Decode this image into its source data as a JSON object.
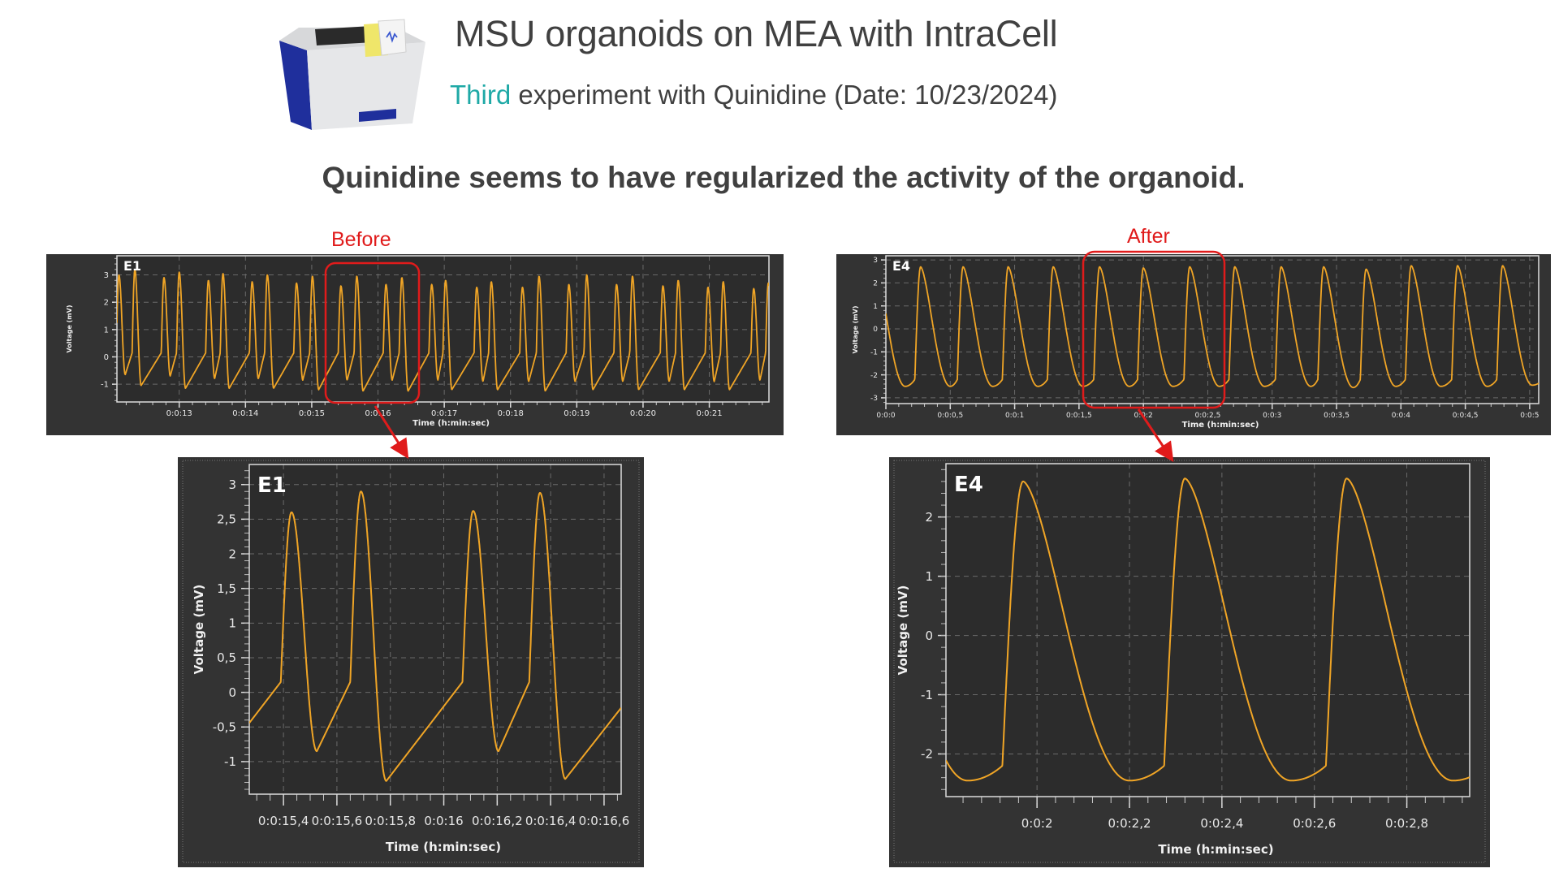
{
  "header": {
    "title": "MSU organoids on MEA with IntraCell",
    "subtitle_accent": "Third",
    "subtitle_rest": " experiment with Quinidine (Date: 10/23/2024)",
    "headline": "Quinidine seems to have regularized the activity of the organoid.",
    "device_icon": "mea-device-icon"
  },
  "annotations": {
    "before_label": "Before",
    "after_label": "After",
    "highlight_color": "#e01b1b"
  },
  "colors": {
    "trace": "#f0a526",
    "panel_bg": "#333333",
    "plot_bg": "#2c2c2c",
    "accent": "#1fa9a6"
  },
  "chart_data": [
    {
      "type": "line",
      "title": "E1",
      "xlabel": "Time (h:min:sec)",
      "ylabel": "Voltage (mV)",
      "xlim": [
        12.06,
        21.9
      ],
      "ylim": [
        -1.65,
        3.7
      ],
      "grid": true,
      "xticks": [
        [
          13,
          "0:0:13"
        ],
        [
          14,
          "0:0:14"
        ],
        [
          15,
          "0:0:15"
        ],
        [
          16,
          "0:0:16"
        ],
        [
          17,
          "0:0:17"
        ],
        [
          18,
          "0:0:18"
        ],
        [
          19,
          "0:0:19"
        ],
        [
          20,
          "0:0:20"
        ],
        [
          21,
          "0:0:21"
        ]
      ],
      "yticks": [
        [
          3,
          "3"
        ],
        [
          2,
          "2"
        ],
        [
          1,
          "1"
        ],
        [
          0,
          "0"
        ],
        [
          -1,
          "-1"
        ]
      ],
      "beats_t_peak_trough": [
        [
          12.09,
          3.0,
          -0.65
        ],
        [
          12.33,
          3.2,
          -1.05
        ],
        [
          12.77,
          2.9,
          -0.7
        ],
        [
          13.0,
          3.1,
          -1.15
        ],
        [
          13.44,
          2.8,
          -0.8
        ],
        [
          13.66,
          3.05,
          -1.15
        ],
        [
          14.1,
          2.75,
          -0.8
        ],
        [
          14.33,
          3.0,
          -1.15
        ],
        [
          14.77,
          2.7,
          -0.85
        ],
        [
          15.01,
          2.95,
          -1.2
        ],
        [
          15.44,
          2.6,
          -0.85
        ],
        [
          15.68,
          2.95,
          -1.25
        ],
        [
          16.12,
          2.65,
          -0.85
        ],
        [
          16.36,
          2.9,
          -1.25
        ],
        [
          16.81,
          2.65,
          -0.85
        ],
        [
          17.02,
          2.8,
          -1.2
        ],
        [
          17.49,
          2.55,
          -0.9
        ],
        [
          17.71,
          2.75,
          -1.2
        ],
        [
          18.18,
          2.55,
          -0.9
        ],
        [
          18.43,
          2.95,
          -1.25
        ],
        [
          18.88,
          2.65,
          -0.9
        ],
        [
          19.15,
          3.0,
          -1.2
        ],
        [
          19.6,
          2.65,
          -0.9
        ],
        [
          19.84,
          2.95,
          -1.2
        ],
        [
          20.3,
          2.6,
          -0.9
        ],
        [
          20.53,
          2.8,
          -1.2
        ],
        [
          20.98,
          2.55,
          -0.9
        ],
        [
          21.21,
          2.75,
          -1.2
        ],
        [
          21.67,
          2.5,
          -0.85
        ],
        [
          21.89,
          2.7,
          -1.1
        ]
      ]
    },
    {
      "type": "line",
      "title": "E4",
      "xlabel": "Time (h:min:sec)",
      "ylabel": "Voltage (mV)",
      "xlim": [
        0,
        5.07
      ],
      "ylim": [
        -3.25,
        3.18
      ],
      "grid": true,
      "xticks": [
        [
          0,
          "0:0:0"
        ],
        [
          0.5,
          "0:0:0,5"
        ],
        [
          1,
          "0:0:1"
        ],
        [
          1.5,
          "0:0:1,5"
        ],
        [
          2,
          "0:0:2"
        ],
        [
          2.5,
          "0:0:2,5"
        ],
        [
          3,
          "0:0:3"
        ],
        [
          3.5,
          "0:0:3,5"
        ],
        [
          4,
          "0:0:4"
        ],
        [
          4.5,
          "0:0:4,5"
        ],
        [
          5,
          "0:0:5"
        ]
      ],
      "yticks": [
        [
          3,
          "3"
        ],
        [
          2,
          "2"
        ],
        [
          1,
          "1"
        ],
        [
          0,
          "0"
        ],
        [
          -1,
          "-1"
        ],
        [
          -2,
          "-2"
        ],
        [
          -3,
          "-3"
        ]
      ],
      "beats_t_peak_trough": [
        [
          0.27,
          2.7,
          -2.5
        ],
        [
          0.6,
          2.7,
          -2.5
        ],
        [
          0.95,
          2.7,
          -2.5
        ],
        [
          1.3,
          2.7,
          -2.5
        ],
        [
          1.66,
          2.7,
          -2.5
        ],
        [
          2.0,
          2.65,
          -2.5
        ],
        [
          2.36,
          2.7,
          -2.5
        ],
        [
          2.71,
          2.7,
          -2.5
        ],
        [
          3.07,
          2.7,
          -2.5
        ],
        [
          3.4,
          2.7,
          -2.55
        ],
        [
          3.73,
          2.6,
          -2.5
        ],
        [
          4.08,
          2.75,
          -2.5
        ],
        [
          4.44,
          2.75,
          -2.5
        ],
        [
          4.79,
          2.75,
          -2.45
        ]
      ]
    },
    {
      "type": "line",
      "title": "E1",
      "xlabel": "Time (h:min:sec)",
      "ylabel": "Voltage (mV)",
      "xlim": [
        15.272,
        16.664
      ],
      "ylim": [
        -1.47,
        3.29
      ],
      "grid": true,
      "xticks": [
        [
          15.4,
          "0:0:15,4"
        ],
        [
          15.6,
          "0:0:15,6"
        ],
        [
          15.8,
          "0:0:15,8"
        ],
        [
          16.0,
          "0:0:16"
        ],
        [
          16.2,
          "0:0:16,2"
        ],
        [
          16.4,
          "0:0:16,4"
        ],
        [
          16.6,
          "0:0:16,6"
        ]
      ],
      "yticks": [
        [
          3,
          "3"
        ],
        [
          2.5,
          "2,5"
        ],
        [
          2,
          "2"
        ],
        [
          1.5,
          "1,5"
        ],
        [
          1,
          "1"
        ],
        [
          0.5,
          "0,5"
        ],
        [
          0,
          "0"
        ],
        [
          -0.5,
          "-0,5"
        ],
        [
          -1,
          "-1"
        ]
      ],
      "beats_t_peak_trough": [
        [
          15.43,
          2.6,
          -0.85
        ],
        [
          15.69,
          2.9,
          -1.28
        ],
        [
          16.11,
          2.62,
          -0.85
        ],
        [
          16.36,
          2.88,
          -1.25
        ]
      ]
    },
    {
      "type": "line",
      "title": "E4",
      "xlabel": "Time (h:min:sec)",
      "ylabel": "Voltage (mV)",
      "xlim": [
        1.803,
        2.936
      ],
      "ylim": [
        -2.72,
        2.9
      ],
      "grid": true,
      "xticks": [
        [
          2.0,
          "0:0:2"
        ],
        [
          2.2,
          "0:0:2,2"
        ],
        [
          2.4,
          "0:0:2,4"
        ],
        [
          2.6,
          "0:0:2,6"
        ],
        [
          2.8,
          "0:0:2,8"
        ]
      ],
      "yticks": [
        [
          2,
          "2"
        ],
        [
          1,
          "1"
        ],
        [
          0,
          "0"
        ],
        [
          -1,
          "-1"
        ],
        [
          -2,
          "-2"
        ]
      ],
      "beats_t_peak_trough": [
        [
          1.97,
          2.6,
          -2.45
        ],
        [
          2.32,
          2.65,
          -2.45
        ],
        [
          2.67,
          2.65,
          -2.45
        ]
      ]
    }
  ]
}
